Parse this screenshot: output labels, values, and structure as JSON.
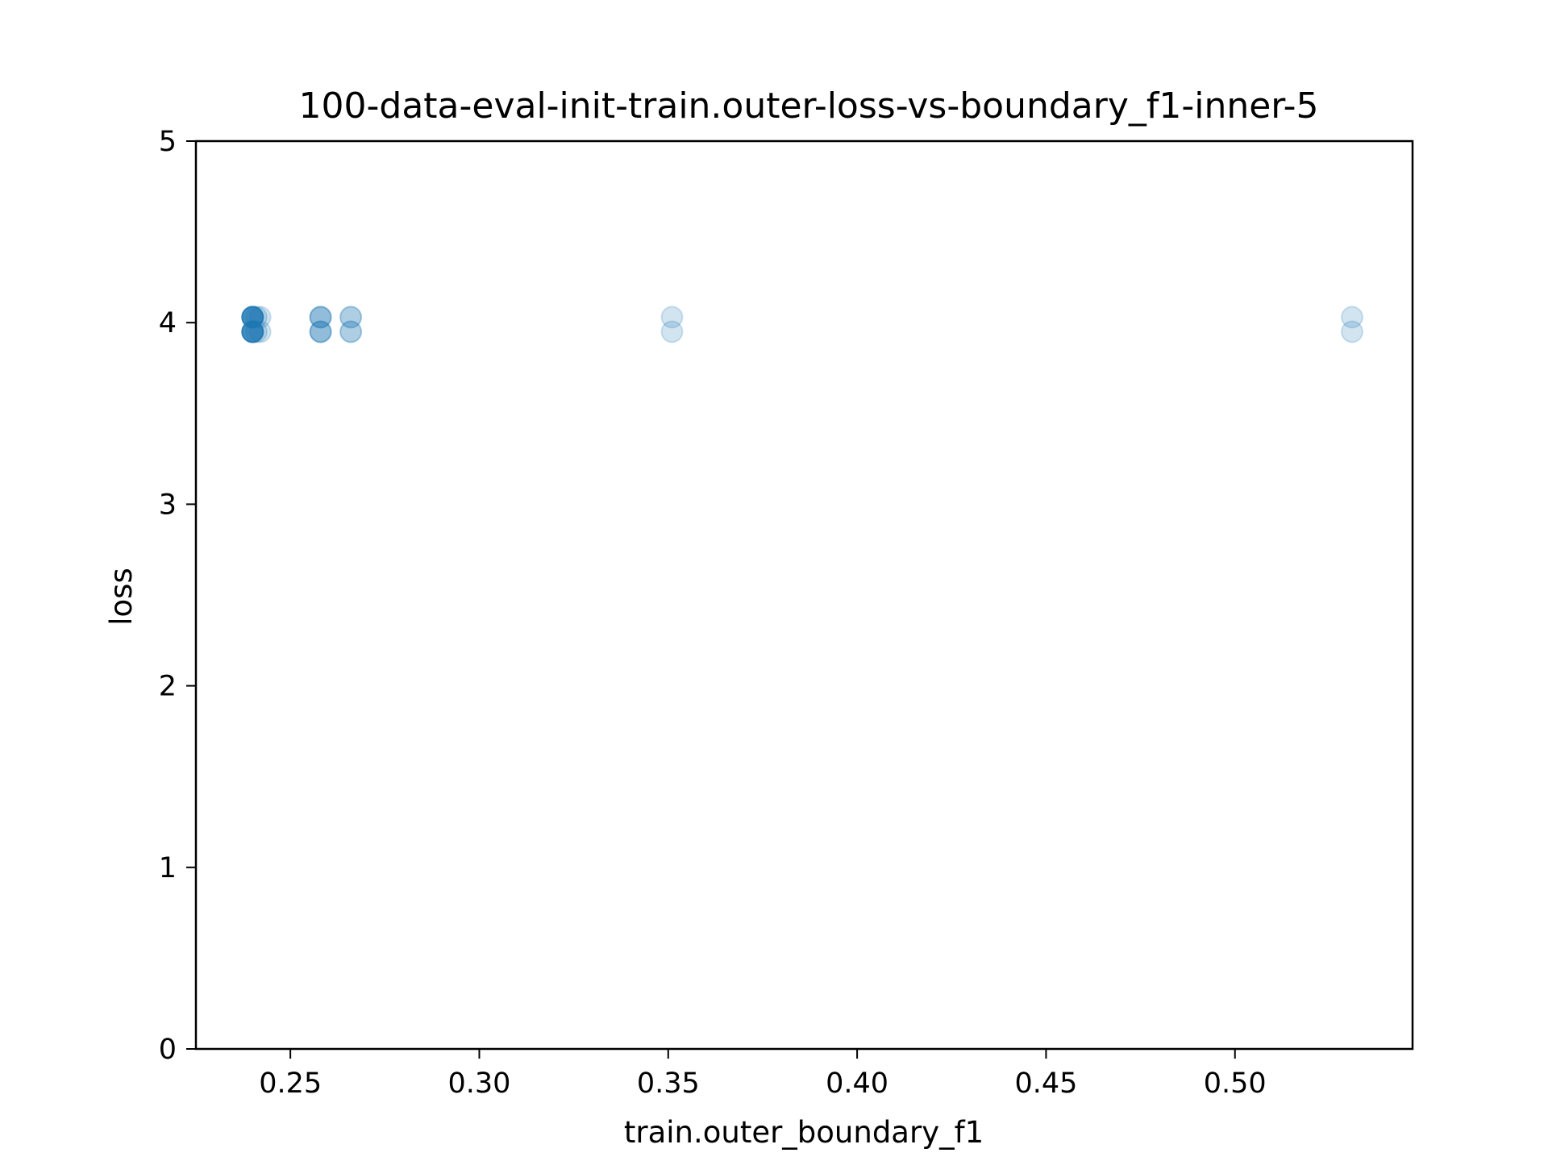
{
  "chart_data": {
    "type": "scatter",
    "title": "100-data-eval-init-train.outer-loss-vs-boundary_f1-inner-5",
    "xlabel": "train.outer_boundary_f1",
    "ylabel": "loss",
    "xlim": [
      0.225,
      0.547
    ],
    "ylim": [
      0,
      5
    ],
    "xticks": [
      0.25,
      0.3,
      0.35,
      0.4,
      0.45,
      0.5
    ],
    "xtick_labels": [
      "0.25",
      "0.30",
      "0.35",
      "0.40",
      "0.45",
      "0.50"
    ],
    "yticks": [
      0,
      1,
      2,
      3,
      4,
      5
    ],
    "ytick_labels": [
      "0",
      "1",
      "2",
      "3",
      "4",
      "5"
    ],
    "grid": false,
    "marker_color": "#1f77b4",
    "marker_alpha": 0.2,
    "points": [
      {
        "x": 0.24,
        "y": 4.03
      },
      {
        "x": 0.24,
        "y": 4.03
      },
      {
        "x": 0.24,
        "y": 4.03
      },
      {
        "x": 0.24,
        "y": 4.03
      },
      {
        "x": 0.24,
        "y": 4.03
      },
      {
        "x": 0.24,
        "y": 4.03
      },
      {
        "x": 0.24,
        "y": 4.03
      },
      {
        "x": 0.24,
        "y": 4.03
      },
      {
        "x": 0.24,
        "y": 3.95
      },
      {
        "x": 0.24,
        "y": 3.95
      },
      {
        "x": 0.24,
        "y": 3.95
      },
      {
        "x": 0.24,
        "y": 3.95
      },
      {
        "x": 0.24,
        "y": 3.95
      },
      {
        "x": 0.24,
        "y": 3.95
      },
      {
        "x": 0.24,
        "y": 3.95
      },
      {
        "x": 0.24,
        "y": 3.95
      },
      {
        "x": 0.241,
        "y": 4.03
      },
      {
        "x": 0.241,
        "y": 3.95
      },
      {
        "x": 0.242,
        "y": 4.03
      },
      {
        "x": 0.242,
        "y": 3.95
      },
      {
        "x": 0.258,
        "y": 4.03
      },
      {
        "x": 0.258,
        "y": 4.03
      },
      {
        "x": 0.258,
        "y": 4.03
      },
      {
        "x": 0.258,
        "y": 3.95
      },
      {
        "x": 0.258,
        "y": 3.95
      },
      {
        "x": 0.258,
        "y": 3.95
      },
      {
        "x": 0.266,
        "y": 4.03
      },
      {
        "x": 0.266,
        "y": 4.03
      },
      {
        "x": 0.266,
        "y": 3.95
      },
      {
        "x": 0.266,
        "y": 3.95
      },
      {
        "x": 0.351,
        "y": 4.03
      },
      {
        "x": 0.351,
        "y": 3.95
      },
      {
        "x": 0.531,
        "y": 4.03
      },
      {
        "x": 0.531,
        "y": 3.95
      }
    ]
  }
}
